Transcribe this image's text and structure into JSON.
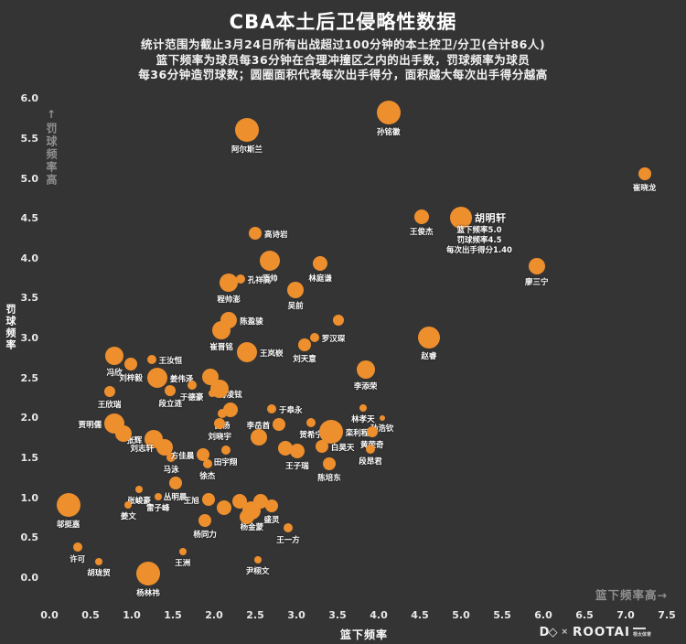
{
  "header": {
    "title": "CBA本土后卫侵略性数据",
    "subtitle1": "统计范围为截止3月24日所有出战超过100分钟的本土控卫/分卫(合计86人)",
    "subtitle2": "篮下频率为球员每36分钟在合理冲撞区之内的出手数，罚球频率为球员",
    "subtitle3": "每36分钟造罚球数；圆圈面积代表每次出手得分，面积越大每次出手得分越高"
  },
  "colors": {
    "background": "#343434",
    "bubble": "#ee8f2e",
    "text": "#ffffff",
    "muted": "#8f8f8f"
  },
  "watermark": {
    "d_logo": "D◇",
    "times": "×",
    "brand": "ROOTAI",
    "badge": "根太体育"
  },
  "chart_data": {
    "type": "scatter",
    "title": "CBA本土后卫侵略性数据",
    "xlabel": "篮下频率",
    "ylabel": "罚球频率",
    "x_hint": "篮下频率高→",
    "y_hint": "↑罚球频率高",
    "xlim": [
      0,
      7.5
    ],
    "ylim": [
      0,
      6.0
    ],
    "x_ticks": [
      "0.0",
      "0.5",
      "1.0",
      "1.5",
      "2.0",
      "2.5",
      "3.0",
      "3.5",
      "4.0",
      "4.5",
      "5.0",
      "5.5",
      "6.0",
      "6.5",
      "7.0",
      "7.5"
    ],
    "y_ticks": [
      "0.0",
      "0.5",
      "1.0",
      "1.5",
      "2.0",
      "2.5",
      "3.0",
      "3.5",
      "4.0",
      "4.5",
      "5.0",
      "5.5",
      "6.0"
    ],
    "grid": false,
    "legend": "none",
    "size_meaning": "圆圈面积代表每次出手得分",
    "annotation": {
      "player": "胡明轩",
      "lines": [
        "篮下频率5.0",
        "罚球频率4.5",
        "每次出手得分1.40"
      ]
    },
    "points": [
      {
        "n": "孙铭徽",
        "x": 4.12,
        "y": 5.82,
        "r": 13,
        "p": "b"
      },
      {
        "n": "阿尔斯兰",
        "x": 2.4,
        "y": 5.6,
        "r": 13,
        "p": "b"
      },
      {
        "n": "崔晓龙",
        "x": 7.23,
        "y": 5.05,
        "r": 7,
        "p": "b"
      },
      {
        "n": "胡明轩",
        "x": 5.0,
        "y": 4.5,
        "r": 12,
        "p": "r",
        "big": true,
        "annotated": true
      },
      {
        "n": "王俊杰",
        "x": 4.52,
        "y": 4.51,
        "r": 8,
        "p": "b"
      },
      {
        "n": "廖三宁",
        "x": 5.92,
        "y": 3.9,
        "r": 9,
        "p": "b"
      },
      {
        "n": "高诗岩",
        "x": 2.5,
        "y": 4.31,
        "r": 7,
        "p": "r"
      },
      {
        "n": "原帅",
        "x": 2.68,
        "y": 3.96,
        "r": 11,
        "p": "b"
      },
      {
        "n": "林庭谦",
        "x": 3.29,
        "y": 3.93,
        "r": 8,
        "p": "b"
      },
      {
        "n": "孔祥高",
        "x": 2.32,
        "y": 3.73,
        "r": 5,
        "p": "r"
      },
      {
        "n": "程帅澎",
        "x": 2.18,
        "y": 3.69,
        "r": 10,
        "p": "b"
      },
      {
        "n": "吴前",
        "x": 2.99,
        "y": 3.6,
        "r": 9,
        "p": "b"
      },
      {
        "n": "陈盈骏",
        "x": 2.18,
        "y": 3.22,
        "r": 9,
        "p": "r"
      },
      {
        "n": "崔晋铭",
        "x": 2.09,
        "y": 3.09,
        "r": 10,
        "p": "b"
      },
      {
        "n": "罗汉琛",
        "x": 3.22,
        "y": 3.0,
        "r": 5,
        "p": "r"
      },
      {
        "n": "刘天意",
        "x": 3.1,
        "y": 2.91,
        "r": 7,
        "p": "b"
      },
      {
        "n": "王岚嵚",
        "x": 2.4,
        "y": 2.82,
        "r": 11,
        "p": "r"
      },
      {
        "n": "赵睿",
        "x": 4.61,
        "y": 3.0,
        "r": 12,
        "p": "b"
      },
      {
        "n": "李添荣",
        "x": 3.84,
        "y": 2.6,
        "r": 10,
        "p": "b"
      },
      {
        "n": "冯欣",
        "x": 0.79,
        "y": 2.77,
        "r": 10,
        "p": "b"
      },
      {
        "n": "刘梓毅",
        "x": 0.99,
        "y": 2.67,
        "r": 7,
        "p": "b"
      },
      {
        "n": "王汝恒",
        "x": 1.24,
        "y": 2.73,
        "r": 5,
        "p": "r"
      },
      {
        "n": "姜伟泽",
        "x": 1.31,
        "y": 2.5,
        "r": 11,
        "p": "r"
      },
      {
        "n": "于德豪",
        "x": 1.73,
        "y": 2.41,
        "r": 5,
        "p": "b"
      },
      {
        "n": "王欣瑞",
        "x": 0.73,
        "y": 2.33,
        "r": 6,
        "p": "b"
      },
      {
        "n": "段立涟",
        "x": 1.47,
        "y": 2.34,
        "r": 6,
        "p": "b"
      },
      {
        "n": "傅凌铉",
        "x": 1.98,
        "y": 2.3,
        "r": 4,
        "p": "r"
      },
      {
        "n": "于皋永",
        "x": 2.7,
        "y": 2.11,
        "r": 5,
        "p": "r"
      },
      {
        "n": "鹤杨",
        "x": 2.1,
        "y": 2.05,
        "r": 5,
        "p": "b"
      },
      {
        "n": "刘晓宇",
        "x": 2.07,
        "y": 1.92,
        "r": 6,
        "p": "b"
      },
      {
        "n": "李岳酋",
        "x": 2.79,
        "y": 1.91,
        "r": 7,
        "p": "l"
      },
      {
        "n": "贺希宁",
        "x": 3.18,
        "y": 1.94,
        "r": 5,
        "p": "b"
      },
      {
        "n": "栾利程",
        "x": 3.42,
        "y": 1.82,
        "r": 13,
        "p": "r"
      },
      {
        "n": "林孝天",
        "x": 3.81,
        "y": 2.12,
        "r": 4,
        "p": "b"
      },
      {
        "n": "孙浩钦",
        "x": 4.04,
        "y": 1.99,
        "r": 3,
        "p": "b"
      },
      {
        "n": "黄荣奇",
        "x": 3.92,
        "y": 1.82,
        "r": 6,
        "p": "b"
      },
      {
        "n": "段昂君",
        "x": 3.9,
        "y": 1.6,
        "r": 5,
        "p": "b"
      },
      {
        "n": "白昊天",
        "x": 3.31,
        "y": 1.64,
        "r": 7,
        "p": "r"
      },
      {
        "n": "王子瑞",
        "x": 3.01,
        "y": 1.58,
        "r": 8,
        "p": "b"
      },
      {
        "n": "田宇翔",
        "x": 2.14,
        "y": 1.59,
        "r": 5,
        "p": "b"
      },
      {
        "n": "陈培东",
        "x": 3.4,
        "y": 1.42,
        "r": 7,
        "p": "b"
      },
      {
        "n": "马泳",
        "x": 1.48,
        "y": 1.5,
        "r": 5,
        "p": "b"
      },
      {
        "n": "方佳晨",
        "x": 1.87,
        "y": 1.54,
        "r": 7,
        "p": "l"
      },
      {
        "n": "徐杰",
        "x": 1.92,
        "y": 1.42,
        "r": 5,
        "p": "b"
      },
      {
        "n": "张辉",
        "x": 1.27,
        "y": 1.73,
        "r": 10,
        "p": "l"
      },
      {
        "n": "刘志轩",
        "x": 1.4,
        "y": 1.63,
        "r": 9,
        "p": "l"
      },
      {
        "n": "贾明儒",
        "x": 0.79,
        "y": 1.93,
        "r": 11,
        "p": "l"
      },
      {
        "n": "丛明晨",
        "x": 1.53,
        "y": 1.18,
        "r": 7,
        "p": "b"
      },
      {
        "n": "张峻豪",
        "x": 1.09,
        "y": 1.1,
        "r": 4,
        "p": "b"
      },
      {
        "n": "雷子峰",
        "x": 1.32,
        "y": 1.01,
        "r": 4,
        "p": "b"
      },
      {
        "n": "王旭",
        "x": 1.93,
        "y": 0.97,
        "r": 7,
        "p": "l"
      },
      {
        "n": "杨同力",
        "x": 1.89,
        "y": 0.71,
        "r": 7,
        "p": "b"
      },
      {
        "n": "杨金蒙",
        "x": 2.46,
        "y": 0.84,
        "r": 10,
        "p": "b"
      },
      {
        "n": "盛灵",
        "x": 2.7,
        "y": 0.89,
        "r": 7,
        "p": "b"
      },
      {
        "n": "王一方",
        "x": 2.9,
        "y": 0.62,
        "r": 5,
        "p": "b"
      },
      {
        "n": "邬挺嘉",
        "x": 0.23,
        "y": 0.9,
        "r": 13,
        "p": "b"
      },
      {
        "n": "姜文",
        "x": 0.96,
        "y": 0.9,
        "r": 4,
        "p": "b"
      },
      {
        "n": "许可",
        "x": 0.34,
        "y": 0.38,
        "r": 5,
        "p": "b"
      },
      {
        "n": "胡珑贸",
        "x": 0.6,
        "y": 0.2,
        "r": 4,
        "p": "b"
      },
      {
        "n": "王洲",
        "x": 1.62,
        "y": 0.32,
        "r": 4,
        "p": "b"
      },
      {
        "n": "尹栩文",
        "x": 2.53,
        "y": 0.22,
        "r": 4,
        "p": "b"
      },
      {
        "n": "杨林祎",
        "x": 1.2,
        "y": 0.05,
        "r": 13,
        "p": "b"
      },
      {
        "n": "",
        "x": 3.51,
        "y": 3.22,
        "r": 6,
        "p": "n"
      },
      {
        "n": "",
        "x": 2.07,
        "y": 2.36,
        "r": 10,
        "p": "n"
      },
      {
        "n": "",
        "x": 1.96,
        "y": 2.51,
        "r": 9,
        "p": "n"
      },
      {
        "n": "",
        "x": 2.2,
        "y": 2.1,
        "r": 8,
        "p": "n"
      },
      {
        "n": "",
        "x": 2.54,
        "y": 1.75,
        "r": 9,
        "p": "n"
      },
      {
        "n": "",
        "x": 2.87,
        "y": 1.62,
        "r": 8,
        "p": "n"
      },
      {
        "n": "",
        "x": 0.9,
        "y": 1.8,
        "r": 9,
        "p": "n"
      },
      {
        "n": "",
        "x": 2.12,
        "y": 0.87,
        "r": 8,
        "p": "n"
      },
      {
        "n": "",
        "x": 2.31,
        "y": 0.95,
        "r": 8,
        "p": "n"
      },
      {
        "n": "",
        "x": 2.4,
        "y": 0.76,
        "r": 8,
        "p": "n"
      },
      {
        "n": "",
        "x": 2.57,
        "y": 0.95,
        "r": 8,
        "p": "n"
      }
    ]
  }
}
